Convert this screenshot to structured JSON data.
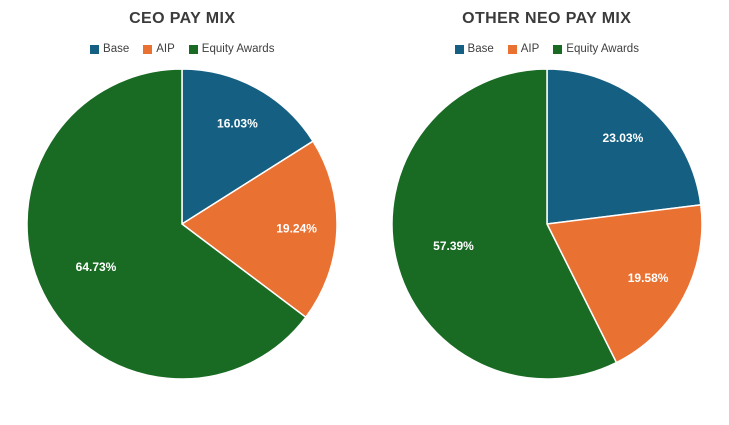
{
  "palette": [
    "#156082",
    "#E97132",
    "#196B24"
  ],
  "styles": {
    "title_color": "#3b3b3b",
    "slice_label_color": "#ffffff",
    "legend_text_color": "#404040",
    "slice_border_color": "#ffffff",
    "background": "#ffffff"
  },
  "chart_data": [
    {
      "type": "pie",
      "title": "CEO PAY MIX",
      "legend_position": "top",
      "start_angle_deg": 0,
      "direction": "clockwise",
      "categories": [
        "Base",
        "AIP",
        "Equity Awards"
      ],
      "values": [
        16.03,
        19.24,
        64.73
      ],
      "series": [
        {
          "name": "Base",
          "value": 16.03,
          "display": "16.03%"
        },
        {
          "name": "AIP",
          "value": 19.24,
          "display": "19.24%"
        },
        {
          "name": "Equity Awards",
          "value": 64.73,
          "display": "64.73%"
        }
      ]
    },
    {
      "type": "pie",
      "title": "OTHER NEO PAY MIX",
      "legend_position": "top",
      "start_angle_deg": 0,
      "direction": "clockwise",
      "categories": [
        "Base",
        "AIP",
        "Equity Awards"
      ],
      "values": [
        23.03,
        19.58,
        57.39
      ],
      "series": [
        {
          "name": "Base",
          "value": 23.03,
          "display": "23.03%"
        },
        {
          "name": "AIP",
          "value": 19.58,
          "display": "19.58%"
        },
        {
          "name": "Equity Awards",
          "value": 57.39,
          "display": "57.39%"
        }
      ]
    }
  ]
}
